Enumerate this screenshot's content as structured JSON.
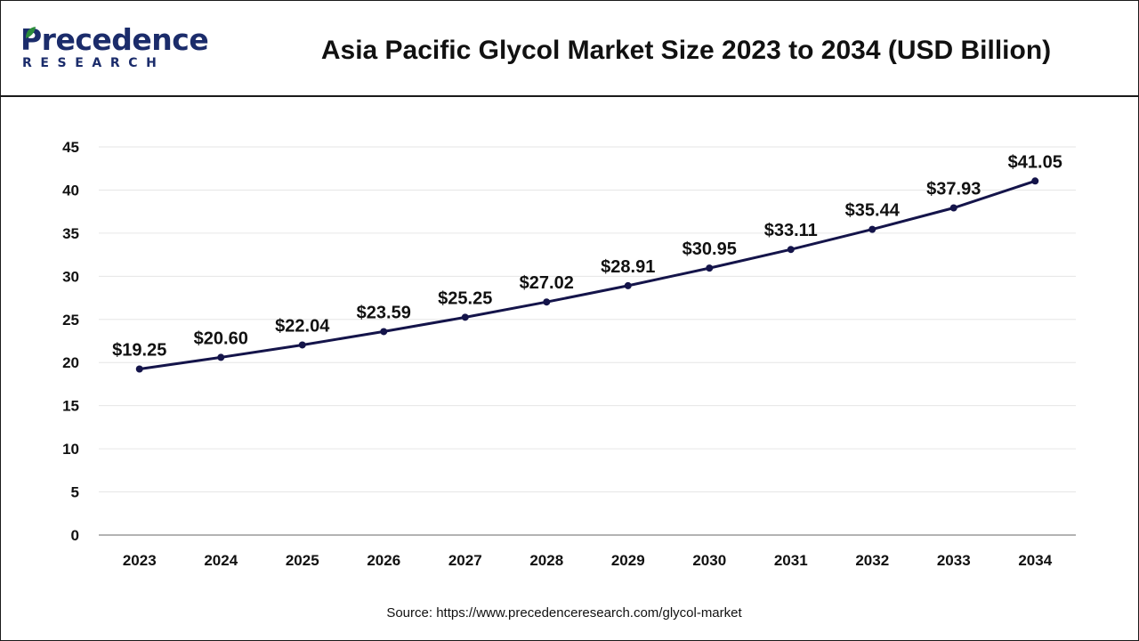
{
  "header": {
    "logo_word": "Precedence",
    "logo_sub": "RESEARCH",
    "title": "Asia Pacific Glycol Market Size 2023 to 2034 (USD Billion)"
  },
  "source": "Source: https://www.precedenceresearch.com/glycol-market",
  "colors": {
    "line": "#14144a",
    "brand": "#1b2c6b",
    "leaf": "#2c8c3c",
    "grid": "#e6e6e6"
  },
  "chart_data": {
    "type": "line",
    "categories": [
      "2023",
      "2024",
      "2025",
      "2026",
      "2027",
      "2028",
      "2029",
      "2030",
      "2031",
      "2032",
      "2033",
      "2034"
    ],
    "values": [
      19.25,
      20.6,
      22.04,
      23.59,
      25.25,
      27.02,
      28.91,
      30.95,
      33.11,
      35.44,
      37.93,
      41.05
    ],
    "data_labels": [
      "$19.25",
      "$20.60",
      "$22.04",
      "$23.59",
      "$25.25",
      "$27.02",
      "$28.91",
      "$30.95",
      "$33.11",
      "$35.44",
      "$37.93",
      "$41.05"
    ],
    "title": "Asia Pacific Glycol Market Size 2023 to 2034 (USD Billion)",
    "xlabel": "",
    "ylabel": "",
    "ylim": [
      0,
      45
    ],
    "yticks": [
      0,
      5,
      10,
      15,
      20,
      25,
      30,
      35,
      40,
      45
    ],
    "grid": true,
    "legend": "none"
  }
}
